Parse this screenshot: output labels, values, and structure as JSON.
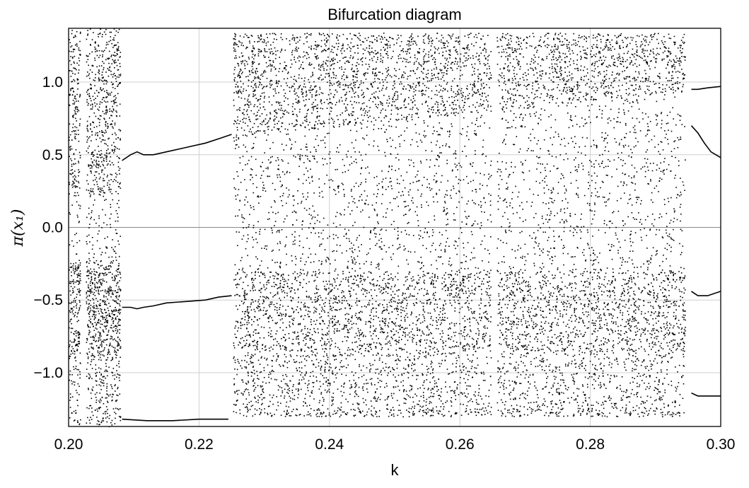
{
  "chart_data": {
    "type": "scatter",
    "title": "Bifurcation diagram",
    "xlabel": "k",
    "ylabel": "π(x₁)",
    "xlim": [
      0.2,
      0.3
    ],
    "ylim": [
      -1.37,
      1.37
    ],
    "x_ticks": [
      0.2,
      0.22,
      0.24,
      0.26,
      0.28,
      0.3
    ],
    "x_tick_labels": [
      "0.20",
      "0.22",
      "0.24",
      "0.26",
      "0.28",
      "0.30"
    ],
    "y_ticks": [
      -1.0,
      -0.5,
      0.0,
      0.5,
      1.0
    ],
    "y_tick_labels": [
      "−1.0",
      "−0.5",
      "0.0",
      "0.5",
      "1.0"
    ],
    "grid": true,
    "legend": "none",
    "series": [
      {
        "kind": "periodic-branch",
        "points": [
          [
            0.2082,
            0.46
          ],
          [
            0.2095,
            0.5
          ],
          [
            0.2105,
            0.52
          ],
          [
            0.2115,
            0.5
          ],
          [
            0.213,
            0.5
          ],
          [
            0.215,
            0.52
          ],
          [
            0.218,
            0.55
          ],
          [
            0.221,
            0.58
          ],
          [
            0.223,
            0.61
          ],
          [
            0.225,
            0.64
          ]
        ]
      },
      {
        "kind": "periodic-branch",
        "points": [
          [
            0.2082,
            -0.55
          ],
          [
            0.2095,
            -0.55
          ],
          [
            0.2105,
            -0.56
          ],
          [
            0.2115,
            -0.55
          ],
          [
            0.213,
            -0.54
          ],
          [
            0.215,
            -0.52
          ],
          [
            0.218,
            -0.51
          ],
          [
            0.221,
            -0.5
          ],
          [
            0.223,
            -0.48
          ],
          [
            0.225,
            -0.47
          ]
        ]
      },
      {
        "kind": "periodic-branch",
        "points": [
          [
            0.2082,
            -1.32
          ],
          [
            0.212,
            -1.33
          ],
          [
            0.216,
            -1.33
          ],
          [
            0.22,
            -1.32
          ],
          [
            0.2245,
            -1.32
          ]
        ]
      },
      {
        "kind": "periodic-branch",
        "points": [
          [
            0.2955,
            0.95
          ],
          [
            0.2965,
            0.95
          ],
          [
            0.298,
            0.96
          ],
          [
            0.3,
            0.97
          ]
        ]
      },
      {
        "kind": "periodic-branch",
        "points": [
          [
            0.2955,
            0.7
          ],
          [
            0.2965,
            0.65
          ],
          [
            0.2975,
            0.58
          ],
          [
            0.2985,
            0.52
          ],
          [
            0.3,
            0.48
          ]
        ]
      },
      {
        "kind": "periodic-branch",
        "points": [
          [
            0.2955,
            -0.44
          ],
          [
            0.2965,
            -0.47
          ],
          [
            0.298,
            -0.47
          ],
          [
            0.3,
            -0.44
          ]
        ]
      },
      {
        "kind": "periodic-branch",
        "points": [
          [
            0.2955,
            -1.14
          ],
          [
            0.2965,
            -1.16
          ],
          [
            0.298,
            -1.16
          ],
          [
            0.3,
            -1.16
          ]
        ]
      },
      {
        "kind": "chaotic-band",
        "x_range": [
          0.2,
          0.2079
        ],
        "y_ranges": [
          [
            -0.87,
            -0.23
          ],
          [
            0.22,
            1.37
          ],
          [
            -1.37,
            -0.87
          ]
        ]
      },
      {
        "kind": "chaotic-band",
        "x_range": [
          0.2252,
          0.2945
        ],
        "y_ranges": [
          [
            0.62,
            1.34
          ],
          [
            -1.3,
            -0.3
          ],
          [
            -0.3,
            0.62
          ]
        ]
      }
    ],
    "gaps_in_chaos": [
      0.2022,
      0.2652
    ]
  }
}
